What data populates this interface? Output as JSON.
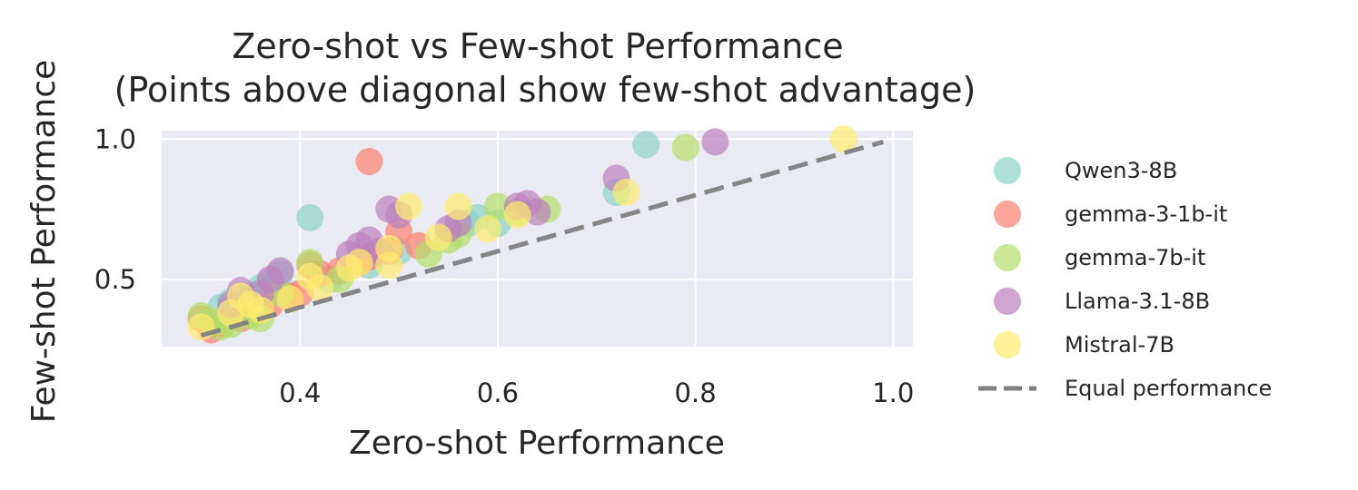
{
  "chart_data": {
    "type": "scatter",
    "title": "Zero-shot vs Few-shot Performance\n(Points above diagonal show few-shot advantage)",
    "title_lines": [
      "Zero-shot vs Few-shot Performance",
      "(Points above diagonal show few-shot advantage)"
    ],
    "xlabel": "Zero-shot Performance",
    "ylabel": "Few-shot Performance",
    "xlim": [
      0.26,
      1.02
    ],
    "ylim": [
      0.26,
      1.03
    ],
    "xticks": [
      0.4,
      0.6,
      0.8,
      1.0
    ],
    "xtick_labels": [
      "0.4",
      "0.6",
      "0.8",
      "1.0"
    ],
    "yticks": [
      0.5,
      1.0
    ],
    "ytick_labels": [
      "0.5",
      "1.0"
    ],
    "grid": true,
    "background": "#eaeaf2",
    "legend_position": "outside-right",
    "reference_line": {
      "name": "Equal performance",
      "x": [
        0.3,
        0.99
      ],
      "y": [
        0.3,
        0.99
      ],
      "color": "#7f7f7f",
      "style": "dashed"
    },
    "series": [
      {
        "name": "Qwen3-8B",
        "color": "#8dd3c7",
        "points": [
          [
            0.32,
            0.4
          ],
          [
            0.33,
            0.42
          ],
          [
            0.35,
            0.44
          ],
          [
            0.36,
            0.47
          ],
          [
            0.37,
            0.49
          ],
          [
            0.38,
            0.52
          ],
          [
            0.41,
            0.72
          ],
          [
            0.43,
            0.5
          ],
          [
            0.47,
            0.55
          ],
          [
            0.5,
            0.6
          ],
          [
            0.57,
            0.7
          ],
          [
            0.58,
            0.72
          ],
          [
            0.6,
            0.7
          ],
          [
            0.72,
            0.81
          ],
          [
            0.75,
            0.98
          ]
        ]
      },
      {
        "name": "gemma-3-1b-it",
        "color": "#fb8072",
        "points": [
          [
            0.3,
            0.36
          ],
          [
            0.31,
            0.32
          ],
          [
            0.32,
            0.34
          ],
          [
            0.34,
            0.36
          ],
          [
            0.36,
            0.39
          ],
          [
            0.37,
            0.41
          ],
          [
            0.39,
            0.44
          ],
          [
            0.4,
            0.45
          ],
          [
            0.41,
            0.55
          ],
          [
            0.42,
            0.52
          ],
          [
            0.44,
            0.53
          ],
          [
            0.46,
            0.56
          ],
          [
            0.47,
            0.58
          ],
          [
            0.47,
            0.92
          ],
          [
            0.49,
            0.6
          ],
          [
            0.5,
            0.67
          ],
          [
            0.52,
            0.62
          ]
        ]
      },
      {
        "name": "gemma-7b-it",
        "color": "#b3de69",
        "points": [
          [
            0.3,
            0.37
          ],
          [
            0.31,
            0.35
          ],
          [
            0.32,
            0.33
          ],
          [
            0.33,
            0.34
          ],
          [
            0.35,
            0.37
          ],
          [
            0.36,
            0.36
          ],
          [
            0.38,
            0.45
          ],
          [
            0.41,
            0.56
          ],
          [
            0.44,
            0.5
          ],
          [
            0.53,
            0.59
          ],
          [
            0.55,
            0.64
          ],
          [
            0.56,
            0.66
          ],
          [
            0.6,
            0.76
          ],
          [
            0.62,
            0.74
          ],
          [
            0.65,
            0.75
          ],
          [
            0.79,
            0.97
          ]
        ]
      },
      {
        "name": "Llama-3.1-8B",
        "color": "#bc80bd",
        "points": [
          [
            0.33,
            0.41
          ],
          [
            0.34,
            0.46
          ],
          [
            0.36,
            0.45
          ],
          [
            0.37,
            0.5
          ],
          [
            0.38,
            0.53
          ],
          [
            0.45,
            0.59
          ],
          [
            0.46,
            0.62
          ],
          [
            0.47,
            0.64
          ],
          [
            0.48,
            0.6
          ],
          [
            0.49,
            0.75
          ],
          [
            0.5,
            0.73
          ],
          [
            0.55,
            0.68
          ],
          [
            0.56,
            0.7
          ],
          [
            0.62,
            0.76
          ],
          [
            0.63,
            0.77
          ],
          [
            0.64,
            0.74
          ],
          [
            0.72,
            0.86
          ],
          [
            0.82,
            0.99
          ]
        ]
      },
      {
        "name": "Mistral-7B",
        "color": "#ffed6f",
        "points": [
          [
            0.3,
            0.33
          ],
          [
            0.33,
            0.38
          ],
          [
            0.34,
            0.44
          ],
          [
            0.35,
            0.41
          ],
          [
            0.36,
            0.39
          ],
          [
            0.39,
            0.43
          ],
          [
            0.41,
            0.51
          ],
          [
            0.42,
            0.47
          ],
          [
            0.45,
            0.54
          ],
          [
            0.46,
            0.56
          ],
          [
            0.49,
            0.55
          ],
          [
            0.49,
            0.61
          ],
          [
            0.51,
            0.76
          ],
          [
            0.54,
            0.65
          ],
          [
            0.56,
            0.76
          ],
          [
            0.59,
            0.68
          ],
          [
            0.62,
            0.73
          ],
          [
            0.73,
            0.81
          ],
          [
            0.95,
            1.0
          ]
        ]
      }
    ]
  }
}
